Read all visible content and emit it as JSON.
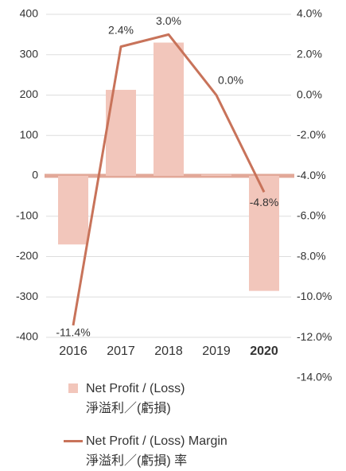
{
  "chart_data": {
    "type": "bar_line",
    "categories": [
      "2016",
      "2017",
      "2018",
      "2019",
      "2020"
    ],
    "bold_index": 4,
    "series": [
      {
        "name": "Net Profit / (Loss)\n淨溢利／(虧損)",
        "type": "bar",
        "color": "#f2c6bb",
        "values": [
          -170,
          213,
          330,
          3,
          -285
        ]
      },
      {
        "name": "Net Profit / (Loss) Margin\n淨溢利／(虧損) 率",
        "type": "line",
        "axis": "y2",
        "color": "#c8735a",
        "values": [
          -11.4,
          2.4,
          3.0,
          0.0,
          -4.8
        ],
        "value_labels": [
          "-11.4%",
          "2.4%",
          "3.0%",
          "0.0%",
          "-4.8%"
        ]
      }
    ],
    "ylim": [
      -400,
      400
    ],
    "yticks": [
      400,
      300,
      200,
      100,
      0,
      -100,
      -200,
      -300,
      -400
    ],
    "y2lim": [
      -14,
      4
    ],
    "y2ticks": [
      {
        "value": 4,
        "label": "4.0%"
      },
      {
        "value": 2,
        "label": "2.0%"
      },
      {
        "value": 0,
        "label": "0.0%"
      },
      {
        "value": -2,
        "label": "-2.0%"
      },
      {
        "value": -4,
        "label": "-4.0%"
      },
      {
        "value": -6,
        "label": "-6.0%"
      },
      {
        "value": -8,
        "label": "-8.0%"
      },
      {
        "value": -10,
        "label": "-10.0%"
      },
      {
        "value": -12,
        "label": "-12.0%"
      },
      {
        "value": -14,
        "label": "-14.0%"
      }
    ],
    "grid": true,
    "zero_line_color": "#e2a898"
  }
}
